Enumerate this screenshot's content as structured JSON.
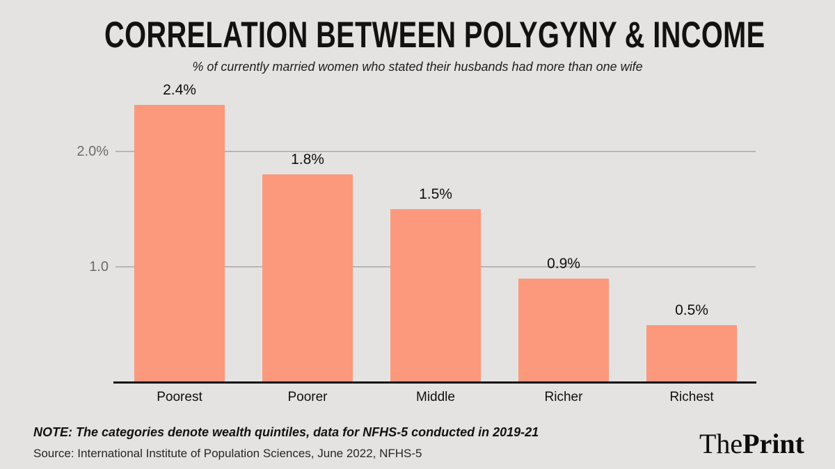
{
  "header": {
    "title": "CORRELATION BETWEEN POLYGYNY & INCOME",
    "subtitle": "% of currently married women who stated their husbands had more than one wife"
  },
  "chart_data": {
    "type": "bar",
    "title": "CORRELATION BETWEEN POLYGYNY & INCOME",
    "subtitle": "% of currently married women who stated their husbands had more than one wife",
    "categories": [
      "Poorest",
      "Poorer",
      "Middle",
      "Richer",
      "Richest"
    ],
    "values": [
      2.4,
      1.8,
      1.5,
      0.9,
      0.5
    ],
    "value_labels": [
      "2.4%",
      "1.8%",
      "1.5%",
      "0.9%",
      "0.5%"
    ],
    "xlabel": "",
    "ylabel": "",
    "ylim": [
      0,
      2.4
    ],
    "yticks": [
      {
        "value": 2.0,
        "label": "2.0%"
      },
      {
        "value": 1.0,
        "label": "1.0"
      }
    ],
    "grid": "horizontal-only",
    "legend": "none",
    "bar_color": "#fc987c",
    "gridline_color": "#b6b6b6",
    "axis_color": "#0a0a0a",
    "tick_text_color": "#6c6c6c",
    "background_color": "#e4e3e1"
  },
  "footer": {
    "note": "NOTE: The categories denote wealth quintiles, data for NFHS-5 conducted in 2019-21",
    "source": "Source: International Institute of Population Sciences, June 2022, NFHS-5"
  },
  "branding": {
    "logo_regular": "The",
    "logo_bold": "Print"
  }
}
